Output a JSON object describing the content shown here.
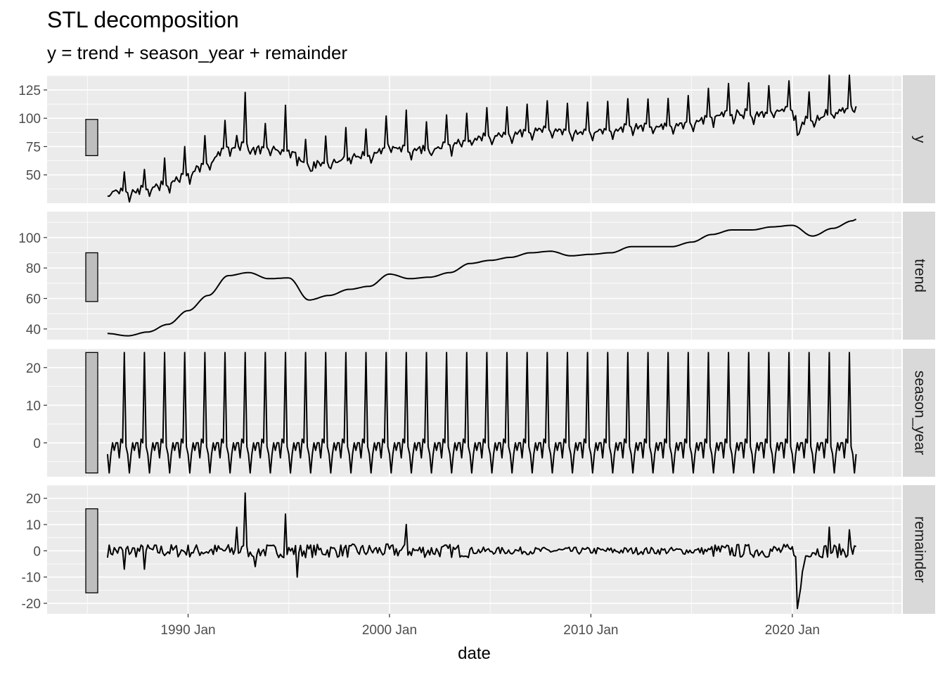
{
  "chart_data": {
    "type": "line",
    "title": "STL decomposition",
    "subtitle": "y = trend + season_year + remainder",
    "xlabel": "date",
    "x_ticks": [
      "1990 Jan",
      "2000 Jan",
      "2010 Jan",
      "2020 Jan"
    ],
    "x_range": [
      "1983-01",
      "2025-06"
    ],
    "series_start": "1986-01",
    "series_end": "2023-03",
    "frequency": "monthly",
    "line_color": "#000000",
    "panel_background": "#ebebeb",
    "strip_background": "#d9d9d9",
    "scale_bar_color": "#bebebe",
    "grid": true,
    "panels": [
      {
        "name": "y",
        "ylim": [
          25,
          138
        ],
        "y_ticks": [
          "125",
          "100",
          "75",
          "50"
        ],
        "y_tick_values": [
          125,
          100,
          75,
          50
        ],
        "scale_bar": [
          67,
          99
        ]
      },
      {
        "name": "trend",
        "ylim": [
          33,
          117
        ],
        "y_ticks": [
          "100",
          "80",
          "60",
          "40"
        ],
        "y_tick_values": [
          100,
          80,
          60,
          40
        ],
        "scale_bar": [
          58,
          90
        ],
        "values_by_year": [
          [
            "1986",
            37
          ],
          [
            "1987",
            35.5
          ],
          [
            "1988",
            38
          ],
          [
            "1989",
            43
          ],
          [
            "1990",
            52
          ],
          [
            "1991",
            62
          ],
          [
            "1992",
            75
          ],
          [
            "1993",
            77
          ],
          [
            "1994",
            73
          ],
          [
            "1995",
            73.5
          ],
          [
            "1996",
            59
          ],
          [
            "1997",
            62
          ],
          [
            "1998",
            66
          ],
          [
            "1999",
            68
          ],
          [
            "2000",
            76
          ],
          [
            "2001",
            73
          ],
          [
            "2002",
            74
          ],
          [
            "2003",
            77
          ],
          [
            "2004",
            83
          ],
          [
            "2005",
            85
          ],
          [
            "2006",
            87
          ],
          [
            "2007",
            90
          ],
          [
            "2008",
            91
          ],
          [
            "2009",
            88
          ],
          [
            "2010",
            89
          ],
          [
            "2011",
            90
          ],
          [
            "2012",
            94
          ],
          [
            "2013",
            94
          ],
          [
            "2014",
            94
          ],
          [
            "2015",
            97
          ],
          [
            "2016",
            102
          ],
          [
            "2017",
            105
          ],
          [
            "2018",
            105
          ],
          [
            "2019",
            107
          ],
          [
            "2020",
            108
          ],
          [
            "2021",
            101
          ],
          [
            "2022",
            106
          ],
          [
            "2023",
            111
          ],
          [
            "2023-03",
            112
          ]
        ]
      },
      {
        "name": "season_year",
        "ylim": [
          -9,
          25
        ],
        "y_ticks": [
          "20",
          "10",
          "0"
        ],
        "y_tick_values": [
          20,
          10,
          0
        ],
        "scale_bar": [
          -8,
          24
        ],
        "monthly_pattern": [
          -3,
          -8,
          -3,
          0,
          -2,
          0,
          0,
          -4,
          1,
          0,
          24,
          -1
        ]
      },
      {
        "name": "remainder",
        "ylim": [
          -24,
          25
        ],
        "y_ticks": [
          "20",
          "10",
          "0",
          "-10",
          "-20"
        ],
        "y_tick_values": [
          20,
          10,
          0,
          -10,
          -20
        ],
        "scale_bar": [
          -16,
          16
        ],
        "notable_values": [
          [
            "1986-11",
            -7
          ],
          [
            "1987-11",
            -7
          ],
          [
            "1992-06",
            9
          ],
          [
            "1992-11",
            22
          ],
          [
            "1993-05",
            -6
          ],
          [
            "1994-11",
            14
          ],
          [
            "1995-06",
            -10
          ],
          [
            "2000-11",
            10
          ],
          [
            "2020-04",
            -22
          ],
          [
            "2020-05",
            -18
          ],
          [
            "2021-11",
            9
          ],
          [
            "2022-11",
            8
          ]
        ]
      }
    ]
  }
}
